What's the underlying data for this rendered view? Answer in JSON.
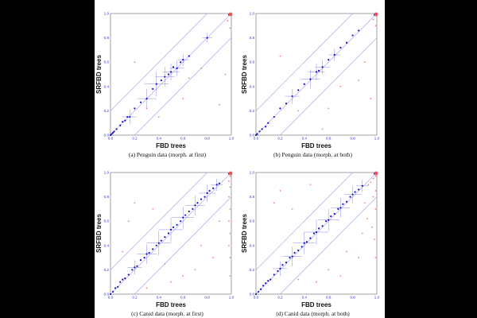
{
  "figure": {
    "background": "#ffffff",
    "border": "#000000"
  },
  "colors": {
    "tree_point": "#1010d0",
    "tree_bar": "#8a8aee",
    "band": "#9a9aee",
    "outlier": "#ee5555",
    "tick": "#2a2acc"
  },
  "chart_data": [
    {
      "id": "a",
      "type": "scatter",
      "caption": "(a) Penguin data (morph. at first)",
      "xlabel": "FBD trees",
      "ylabel": "SRFBD trees",
      "xlim": [
        0,
        1
      ],
      "ylim": [
        0,
        1
      ],
      "xticks": [
        "0.0",
        "0.2",
        "0.4",
        "0.6",
        "0.8",
        "1.0"
      ],
      "yticks": [
        "0.0",
        "0.2",
        "0.4",
        "0.6",
        "0.8",
        "1.0"
      ],
      "reference_lines": [
        {
          "slope": 1,
          "intercept": 0
        },
        {
          "slope": 1,
          "intercept": 0.2
        },
        {
          "slope": 1,
          "intercept": -0.2
        }
      ],
      "series": [
        {
          "kind": "clade",
          "points": [
            [
              0.0,
              0.0
            ],
            [
              0.01,
              0.01
            ],
            [
              0.02,
              0.02
            ],
            [
              0.03,
              0.03
            ],
            [
              0.05,
              0.05
            ],
            [
              0.08,
              0.08
            ],
            [
              0.1,
              0.11
            ],
            [
              0.12,
              0.12
            ],
            [
              0.14,
              0.15
            ],
            [
              0.16,
              0.15
            ],
            [
              0.2,
              0.22
            ],
            [
              0.25,
              0.27
            ],
            [
              0.3,
              0.3
            ],
            [
              0.35,
              0.38
            ],
            [
              0.38,
              0.42
            ],
            [
              0.42,
              0.45
            ],
            [
              0.45,
              0.48
            ],
            [
              0.48,
              0.5
            ],
            [
              0.5,
              0.52
            ],
            [
              0.52,
              0.56
            ],
            [
              0.55,
              0.55
            ],
            [
              0.58,
              0.6
            ],
            [
              0.6,
              0.62
            ],
            [
              0.65,
              0.65
            ],
            [
              0.8,
              0.8
            ],
            [
              0.98,
              0.99
            ]
          ],
          "bars": [
            [
              0.16,
              0.15,
              0.06
            ],
            [
              0.3,
              0.3,
              0.08
            ],
            [
              0.38,
              0.42,
              0.1
            ],
            [
              0.45,
              0.48,
              0.08
            ],
            [
              0.5,
              0.52,
              0.07
            ],
            [
              0.55,
              0.55,
              0.06
            ],
            [
              0.6,
              0.62,
              0.05
            ],
            [
              0.8,
              0.8,
              0.04
            ]
          ]
        },
        {
          "kind": "outlier",
          "points": [
            [
              0.99,
              0.88
            ],
            [
              0.97,
              0.94
            ],
            [
              0.75,
              0.55
            ],
            [
              0.6,
              0.3
            ],
            [
              0.2,
              0.6
            ],
            [
              0.95,
              0.5
            ],
            [
              0.9,
              0.25
            ],
            [
              0.3,
              0.22
            ],
            [
              0.4,
              0.15
            ],
            [
              0.65,
              0.47
            ]
          ]
        }
      ]
    },
    {
      "id": "b",
      "type": "scatter",
      "caption": "(b) Penguin data (morph. at both)",
      "xlabel": "FBD trees",
      "ylabel": "SRFBD trees",
      "xlim": [
        0,
        1
      ],
      "ylim": [
        0,
        1
      ],
      "xticks": [
        "0.0",
        "0.2",
        "0.4",
        "0.6",
        "0.8",
        "1.0"
      ],
      "yticks": [
        "0.0",
        "0.2",
        "0.4",
        "0.6",
        "0.8",
        "1.0"
      ],
      "reference_lines": [
        {
          "slope": 1,
          "intercept": 0
        },
        {
          "slope": 1,
          "intercept": 0.2
        },
        {
          "slope": 1,
          "intercept": -0.2
        }
      ],
      "series": [
        {
          "kind": "clade",
          "points": [
            [
              0.0,
              0.0
            ],
            [
              0.01,
              0.01
            ],
            [
              0.03,
              0.03
            ],
            [
              0.05,
              0.05
            ],
            [
              0.08,
              0.07
            ],
            [
              0.1,
              0.1
            ],
            [
              0.15,
              0.15
            ],
            [
              0.2,
              0.22
            ],
            [
              0.25,
              0.26
            ],
            [
              0.3,
              0.32
            ],
            [
              0.35,
              0.37
            ],
            [
              0.4,
              0.42
            ],
            [
              0.45,
              0.46
            ],
            [
              0.5,
              0.52
            ],
            [
              0.52,
              0.53
            ],
            [
              0.55,
              0.56
            ],
            [
              0.6,
              0.62
            ],
            [
              0.65,
              0.66
            ],
            [
              0.7,
              0.72
            ],
            [
              0.75,
              0.76
            ],
            [
              0.8,
              0.82
            ],
            [
              0.85,
              0.86
            ],
            [
              0.98,
              0.99
            ]
          ],
          "bars": [
            [
              0.3,
              0.32,
              0.06
            ],
            [
              0.45,
              0.46,
              0.08
            ],
            [
              0.5,
              0.52,
              0.07
            ],
            [
              0.55,
              0.56,
              0.06
            ],
            [
              0.65,
              0.66,
              0.05
            ]
          ]
        },
        {
          "kind": "outlier",
          "points": [
            [
              0.99,
              0.9
            ],
            [
              0.97,
              0.95
            ],
            [
              0.9,
              0.6
            ],
            [
              0.2,
              0.65
            ],
            [
              0.7,
              0.4
            ],
            [
              0.85,
              0.45
            ],
            [
              0.6,
              0.22
            ],
            [
              0.35,
              0.2
            ],
            [
              0.95,
              0.3
            ],
            [
              0.55,
              0.05
            ]
          ]
        }
      ]
    },
    {
      "id": "c",
      "type": "scatter",
      "caption": "(c) Canid data (morph. at first)",
      "xlabel": "FBD trees",
      "ylabel": "SRFBD trees",
      "xlim": [
        0,
        1
      ],
      "ylim": [
        0,
        1
      ],
      "xticks": [
        "0.0",
        "0.2",
        "0.4",
        "0.6",
        "0.8",
        "1.0"
      ],
      "yticks": [
        "0.0",
        "0.2",
        "0.4",
        "0.6",
        "0.8",
        "1.0"
      ],
      "reference_lines": [
        {
          "slope": 1,
          "intercept": 0
        },
        {
          "slope": 1,
          "intercept": 0.2
        },
        {
          "slope": 1,
          "intercept": -0.2
        }
      ],
      "series": [
        {
          "kind": "clade",
          "points": [
            [
              0.0,
              0.0
            ],
            [
              0.02,
              0.02
            ],
            [
              0.04,
              0.05
            ],
            [
              0.06,
              0.06
            ],
            [
              0.08,
              0.1
            ],
            [
              0.1,
              0.12
            ],
            [
              0.12,
              0.13
            ],
            [
              0.15,
              0.16
            ],
            [
              0.18,
              0.2
            ],
            [
              0.2,
              0.22
            ],
            [
              0.22,
              0.23
            ],
            [
              0.25,
              0.28
            ],
            [
              0.28,
              0.3
            ],
            [
              0.3,
              0.33
            ],
            [
              0.32,
              0.34
            ],
            [
              0.35,
              0.37
            ],
            [
              0.38,
              0.4
            ],
            [
              0.4,
              0.42
            ],
            [
              0.42,
              0.44
            ],
            [
              0.45,
              0.47
            ],
            [
              0.48,
              0.5
            ],
            [
              0.5,
              0.53
            ],
            [
              0.52,
              0.55
            ],
            [
              0.55,
              0.57
            ],
            [
              0.58,
              0.6
            ],
            [
              0.6,
              0.63
            ],
            [
              0.62,
              0.65
            ],
            [
              0.65,
              0.68
            ],
            [
              0.68,
              0.7
            ],
            [
              0.7,
              0.73
            ],
            [
              0.72,
              0.75
            ],
            [
              0.75,
              0.78
            ],
            [
              0.78,
              0.8
            ],
            [
              0.8,
              0.83
            ],
            [
              0.82,
              0.85
            ],
            [
              0.85,
              0.87
            ],
            [
              0.88,
              0.9
            ],
            [
              0.9,
              0.91
            ],
            [
              0.98,
              0.99
            ]
          ],
          "bars": [
            [
              0.2,
              0.22,
              0.06
            ],
            [
              0.3,
              0.33,
              0.08
            ],
            [
              0.4,
              0.42,
              0.1
            ],
            [
              0.5,
              0.53,
              0.1
            ],
            [
              0.6,
              0.63,
              0.09
            ],
            [
              0.7,
              0.73,
              0.08
            ],
            [
              0.8,
              0.83,
              0.07
            ],
            [
              0.88,
              0.9,
              0.05
            ]
          ]
        },
        {
          "kind": "outlier",
          "points": [
            [
              0.99,
              0.97
            ],
            [
              0.98,
              0.93
            ],
            [
              0.99,
              0.88
            ],
            [
              0.98,
              0.8
            ],
            [
              0.99,
              0.7
            ],
            [
              0.98,
              0.6
            ],
            [
              0.99,
              0.5
            ],
            [
              0.98,
              0.4
            ],
            [
              0.99,
              0.3
            ],
            [
              0.99,
              0.15
            ],
            [
              0.2,
              0.75
            ],
            [
              0.15,
              0.6
            ],
            [
              0.35,
              0.7
            ],
            [
              0.75,
              0.4
            ],
            [
              0.85,
              0.3
            ],
            [
              0.6,
              0.15
            ],
            [
              0.5,
              0.1
            ],
            [
              0.3,
              0.05
            ],
            [
              0.9,
              0.6
            ],
            [
              0.7,
              0.2
            ],
            [
              0.45,
              0.25
            ],
            [
              0.1,
              0.35
            ]
          ]
        }
      ]
    },
    {
      "id": "d",
      "type": "scatter",
      "caption": "(d) Canid data (morph. at both)",
      "xlabel": "FBD trees",
      "ylabel": "SRFBD trees",
      "xlim": [
        0,
        1
      ],
      "ylim": [
        0,
        1
      ],
      "xticks": [
        "0.0",
        "0.2",
        "0.4",
        "0.6",
        "0.8",
        "1.0"
      ],
      "yticks": [
        "0.0",
        "0.2",
        "0.4",
        "0.6",
        "0.8",
        "1.0"
      ],
      "reference_lines": [
        {
          "slope": 1,
          "intercept": 0
        },
        {
          "slope": 1,
          "intercept": 0.2
        },
        {
          "slope": 1,
          "intercept": -0.2
        }
      ],
      "series": [
        {
          "kind": "clade",
          "points": [
            [
              0.0,
              0.0
            ],
            [
              0.02,
              0.02
            ],
            [
              0.04,
              0.04
            ],
            [
              0.06,
              0.07
            ],
            [
              0.08,
              0.09
            ],
            [
              0.1,
              0.11
            ],
            [
              0.12,
              0.12
            ],
            [
              0.15,
              0.16
            ],
            [
              0.18,
              0.19
            ],
            [
              0.2,
              0.21
            ],
            [
              0.22,
              0.24
            ],
            [
              0.25,
              0.26
            ],
            [
              0.28,
              0.3
            ],
            [
              0.3,
              0.31
            ],
            [
              0.32,
              0.34
            ],
            [
              0.35,
              0.36
            ],
            [
              0.38,
              0.39
            ],
            [
              0.4,
              0.42
            ],
            [
              0.42,
              0.43
            ],
            [
              0.45,
              0.46
            ],
            [
              0.48,
              0.5
            ],
            [
              0.5,
              0.51
            ],
            [
              0.52,
              0.54
            ],
            [
              0.55,
              0.56
            ],
            [
              0.58,
              0.6
            ],
            [
              0.6,
              0.61
            ],
            [
              0.62,
              0.64
            ],
            [
              0.65,
              0.66
            ],
            [
              0.68,
              0.7
            ],
            [
              0.7,
              0.71
            ],
            [
              0.72,
              0.74
            ],
            [
              0.75,
              0.76
            ],
            [
              0.78,
              0.8
            ],
            [
              0.8,
              0.82
            ],
            [
              0.82,
              0.84
            ],
            [
              0.85,
              0.86
            ],
            [
              0.88,
              0.89
            ],
            [
              0.98,
              0.99
            ]
          ],
          "bars": [
            [
              0.2,
              0.21,
              0.06
            ],
            [
              0.3,
              0.31,
              0.08
            ],
            [
              0.4,
              0.42,
              0.09
            ],
            [
              0.5,
              0.51,
              0.1
            ],
            [
              0.6,
              0.61,
              0.09
            ],
            [
              0.7,
              0.71,
              0.08
            ],
            [
              0.8,
              0.82,
              0.07
            ],
            [
              0.88,
              0.89,
              0.05
            ]
          ]
        },
        {
          "kind": "outlier",
          "points": [
            [
              0.99,
              0.97
            ],
            [
              0.97,
              0.95
            ],
            [
              0.95,
              0.92
            ],
            [
              0.93,
              0.9
            ],
            [
              0.99,
              0.85
            ],
            [
              0.97,
              0.8
            ],
            [
              0.99,
              0.7
            ],
            [
              0.9,
              0.75
            ],
            [
              0.96,
              0.55
            ],
            [
              0.98,
              0.45
            ],
            [
              0.99,
              0.3
            ],
            [
              0.2,
              0.85
            ],
            [
              0.15,
              0.75
            ],
            [
              0.3,
              0.7
            ],
            [
              0.45,
              0.9
            ],
            [
              0.75,
              0.35
            ],
            [
              0.85,
              0.3
            ],
            [
              0.6,
              0.2
            ],
            [
              0.5,
              0.1
            ],
            [
              0.35,
              0.12
            ],
            [
              0.7,
              0.15
            ],
            [
              0.88,
              0.5
            ],
            [
              0.92,
              0.62
            ]
          ]
        }
      ]
    }
  ]
}
